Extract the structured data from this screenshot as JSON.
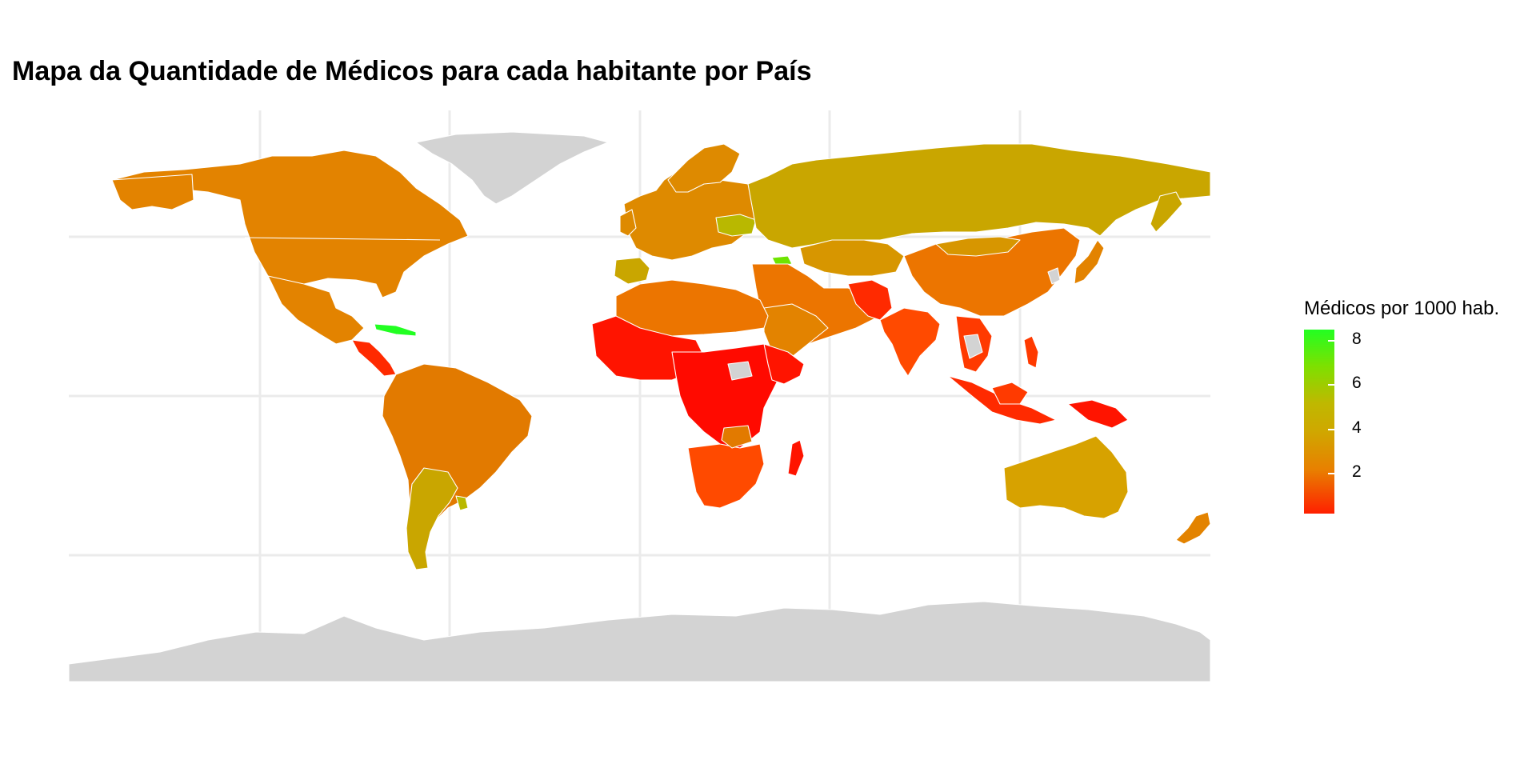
{
  "title": "Mapa da Quantidade de Médicos para cada habitante por País",
  "legend": {
    "title": "Médicos por 1000 hab.",
    "ticks": [
      "8",
      "6",
      "4",
      "2"
    ]
  },
  "colors": {
    "low": "#ff2000",
    "mid": "#e88000",
    "high": "#cfa800",
    "top": "#22ff22",
    "missing": "#d3d3d3",
    "grid": "#ebebeb",
    "border": "#ffffff"
  }
}
